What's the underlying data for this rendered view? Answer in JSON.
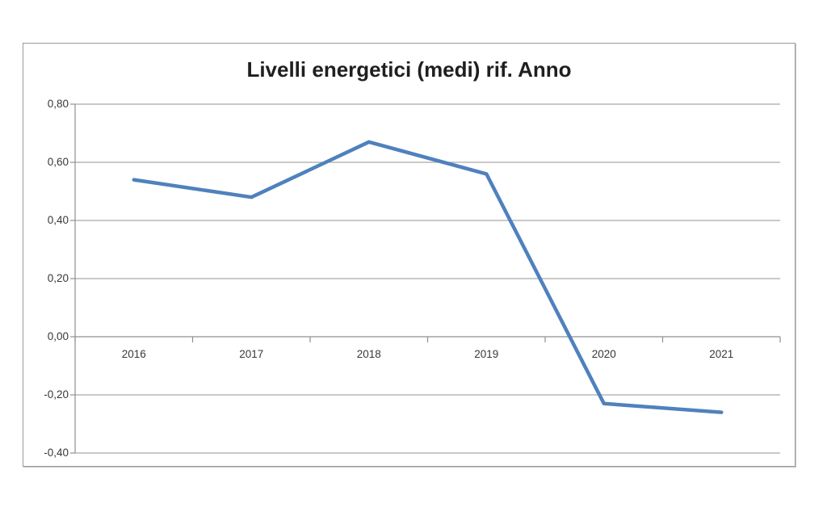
{
  "page": {
    "background_color": "#ffffff"
  },
  "chart_data": {
    "type": "line",
    "title": "Livelli energetici (medi) rif. Anno",
    "categories": [
      "2016",
      "2017",
      "2018",
      "2019",
      "2020",
      "2021"
    ],
    "values": [
      0.54,
      0.48,
      0.67,
      0.56,
      -0.23,
      -0.26
    ],
    "xlabel": "",
    "ylabel": "",
    "ylim": [
      -0.4,
      0.8
    ],
    "ytick_step": 0.2,
    "ytick_labels": [
      "0,80",
      "0,60",
      "0,40",
      "0,20",
      "0,00",
      "-0,20",
      "-0,40"
    ],
    "decimal_separator": ",",
    "grid": true,
    "legend": false,
    "legend_position": "none",
    "line_color": "#4f81bd",
    "line_width": 4.5,
    "gridline_color": "#a9a9a9",
    "axis_color": "#8f8f8f",
    "frame_border_color": "#9a9a9a",
    "title_color": "#1f1f1f",
    "label_color": "#383838"
  }
}
